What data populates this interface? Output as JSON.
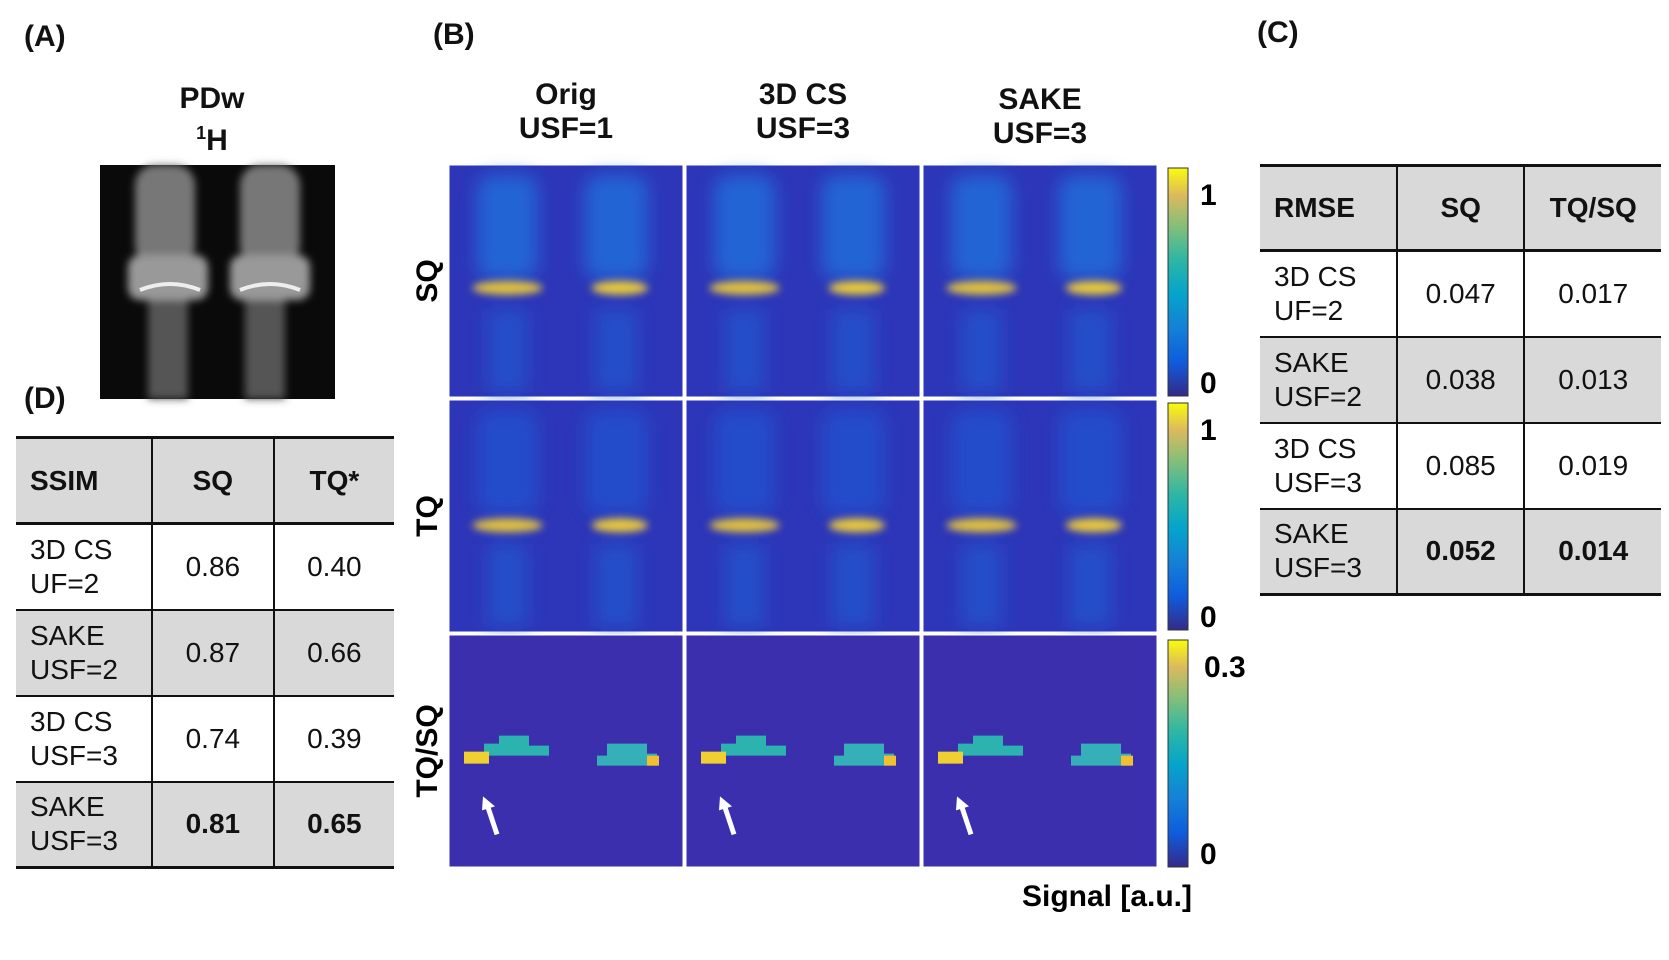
{
  "panel_a": {
    "label": "(A)",
    "title": "PDw",
    "nucleus_superscript": "1",
    "nucleus": "H"
  },
  "panel_b": {
    "label": "(B)",
    "columns": [
      [
        "Orig",
        "USF=1"
      ],
      [
        "3D CS",
        "USF=3"
      ],
      [
        "SAKE",
        "USF=3"
      ]
    ],
    "rows": [
      "SQ",
      "TQ",
      "TQ/SQ"
    ],
    "colorbars": [
      {
        "max": "1",
        "min": "0"
      },
      {
        "max": "1",
        "min": "0"
      },
      {
        "max": "0.3",
        "min": "0"
      }
    ],
    "colorbar_label": "Signal [a.u.]"
  },
  "panel_c": {
    "label": "(C)",
    "header": [
      "RMSE",
      "SQ",
      "TQ/SQ"
    ],
    "rows": [
      [
        [
          "3D CS",
          "UF=2"
        ],
        [
          "0.047"
        ],
        [
          "0.017"
        ]
      ],
      [
        [
          "SAKE",
          "USF=2"
        ],
        [
          "0.038"
        ],
        [
          "0.013"
        ]
      ],
      [
        [
          "3D CS",
          "USF=3"
        ],
        [
          "0.085"
        ],
        [
          "0.019"
        ]
      ],
      [
        [
          "SAKE",
          "USF=3"
        ],
        [
          "0.052"
        ],
        [
          "0.014"
        ]
      ]
    ],
    "bold_row": 3
  },
  "panel_d": {
    "label": "(D)",
    "header": [
      "SSIM",
      "SQ",
      "TQ*"
    ],
    "rows": [
      [
        [
          "3D CS",
          "UF=2"
        ],
        [
          "0.86"
        ],
        [
          "0.40"
        ]
      ],
      [
        [
          "SAKE",
          "USF=2"
        ],
        [
          "0.87"
        ],
        [
          "0.66"
        ]
      ],
      [
        [
          "3D CS",
          "USF=3"
        ],
        [
          "0.74"
        ],
        [
          "0.39"
        ]
      ],
      [
        [
          "SAKE",
          "USF=3"
        ],
        [
          "0.81"
        ],
        [
          "0.65"
        ]
      ]
    ],
    "bold_row": 3
  }
}
